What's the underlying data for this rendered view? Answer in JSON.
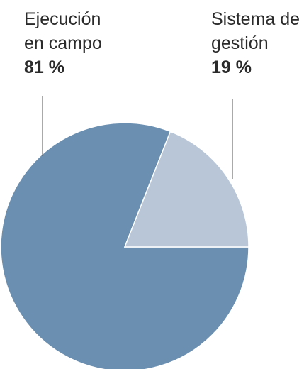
{
  "chart_data": {
    "type": "pie",
    "categories": [
      "Ejecución en campo",
      "Sistema de gestión"
    ],
    "values": [
      81,
      19
    ],
    "value_labels": [
      "81 %",
      "19 %"
    ],
    "colors": [
      "#6b8fb0",
      "#b9c6d8"
    ]
  }
}
